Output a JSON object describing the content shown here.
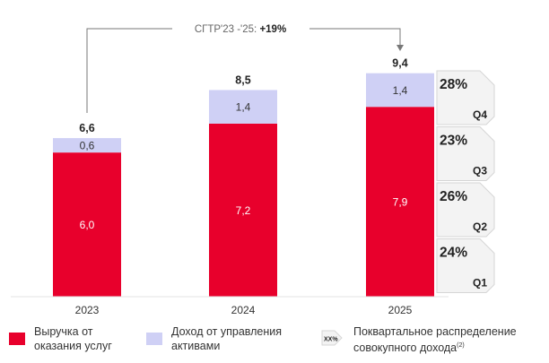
{
  "chart_data": {
    "type": "bar",
    "stacked": true,
    "categories": [
      "2023",
      "2024",
      "2025"
    ],
    "series": [
      {
        "name": "Выручка от оказания услуг",
        "values": [
          6.0,
          7.2,
          7.9
        ],
        "labels": [
          "6,0",
          "7,2",
          "7,9"
        ],
        "color": "#e8002c"
      },
      {
        "name": "Доход от управления активами",
        "values": [
          0.6,
          1.4,
          1.4
        ],
        "labels": [
          "0,6",
          "1,4",
          "1,4"
        ],
        "color": "#cfd0f5"
      }
    ],
    "totals": [
      6.6,
      8.5,
      9.4
    ],
    "total_labels": [
      "6,6",
      "8,5",
      "9,4"
    ],
    "ylim": [
      0,
      9.4
    ],
    "cagr": {
      "prefix": "CГТР'23 -'25: ",
      "value": "+19%",
      "from": "2023",
      "to": "2025"
    },
    "quarterly_distribution": [
      {
        "quarter": "Q4",
        "pct": "28%"
      },
      {
        "quarter": "Q3",
        "pct": "23%"
      },
      {
        "quarter": "Q2",
        "pct": "26%"
      },
      {
        "quarter": "Q1",
        "pct": "24%"
      }
    ]
  },
  "legend": {
    "revenue_line1": "Выручка от",
    "revenue_line2": "оказания услуг",
    "asset_line1": "Доход от управления",
    "asset_line2": "активами",
    "quarterly_line1": "Поквартальное распределение",
    "quarterly_line2": "совокупного дохода",
    "quarterly_footnote": "(2)",
    "quarterly_icon_text": "XX%"
  },
  "colors": {
    "revenue": "#e8002c",
    "asset": "#cfd0f5",
    "quarter_box": "#f3f3f3",
    "quarter_edge": "#d6d6d6",
    "text": "#222222",
    "bar_label": "#ffffff"
  }
}
